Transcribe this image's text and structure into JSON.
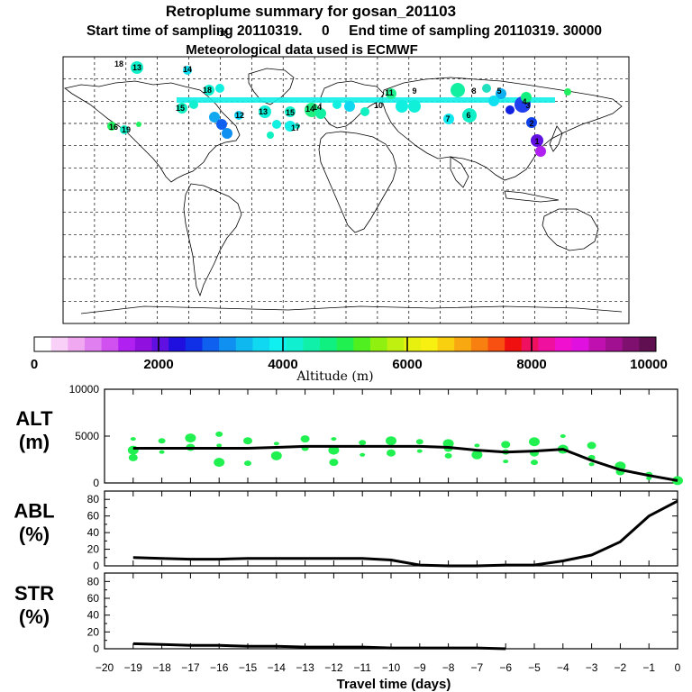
{
  "header": {
    "title": "Retroplume summary for gosan_201103",
    "sampling_line": "Start time of sampling 20110319.     0     End time of sampling 20110319. 30000",
    "met_line": "Meteorological data used is ECMWF"
  },
  "colorbar": {
    "ticks": [
      "0",
      "2000",
      "4000",
      "6000",
      "8000",
      "10000"
    ],
    "label": "Altitude  (m)",
    "colors": [
      "#ffffff",
      "#f8d0f8",
      "#f0a8f0",
      "#e080f0",
      "#d050f0",
      "#b020f0",
      "#9010e0",
      "#6010e0",
      "#2010e0",
      "#1030e8",
      "#1060f0",
      "#1090f0",
      "#10b8f0",
      "#10d8f0",
      "#10f0f0",
      "#10f0d0",
      "#10f0a8",
      "#10f080",
      "#20f050",
      "#50f020",
      "#90f010",
      "#c0f010",
      "#e8f010",
      "#f8f010",
      "#f8d010",
      "#f8a810",
      "#f88010",
      "#f85010",
      "#f01010",
      "#f01060",
      "#f010a0",
      "#f010d0",
      "#e010e0",
      "#c010b0",
      "#a01090",
      "#801070",
      "#601050"
    ]
  },
  "map_labels": [
    "13",
    "14",
    "18",
    "15",
    "18",
    "12",
    "13",
    "15",
    "17",
    "14",
    "14",
    "3",
    "10",
    "11",
    "7",
    "8",
    "9",
    "6",
    "5",
    "4",
    "2",
    "1",
    "16",
    "19",
    "18"
  ],
  "chart_data": [
    {
      "type": "scatter",
      "name": "ALT",
      "ylabel": "ALT\n(m)",
      "ylabel_lines": [
        "ALT",
        "(m)"
      ],
      "xlim": [
        -20,
        0
      ],
      "ylim": [
        0,
        10000
      ],
      "yticks": [
        "0",
        "5000",
        "10000"
      ],
      "line": {
        "x": [
          -19,
          -18,
          -17,
          -16,
          -15,
          -14,
          -13,
          -12,
          -11,
          -10,
          -9,
          -8,
          -7,
          -6,
          -5,
          -4,
          -3,
          -2,
          -1,
          0
        ],
        "y": [
          3700,
          3700,
          3700,
          3700,
          3700,
          3800,
          3900,
          3900,
          3900,
          3900,
          3900,
          3800,
          3500,
          3300,
          3400,
          3600,
          2400,
          1400,
          800,
          250
        ]
      },
      "points": [
        {
          "x": -19,
          "y": 4700
        },
        {
          "x": -19,
          "y": 3500
        },
        {
          "x": -19,
          "y": 2700
        },
        {
          "x": -18,
          "y": 4500
        },
        {
          "x": -18,
          "y": 3300
        },
        {
          "x": -17,
          "y": 4800
        },
        {
          "x": -17,
          "y": 3800
        },
        {
          "x": -16,
          "y": 5200
        },
        {
          "x": -16,
          "y": 4000
        },
        {
          "x": -16,
          "y": 2200
        },
        {
          "x": -15,
          "y": 4500
        },
        {
          "x": -15,
          "y": 2100
        },
        {
          "x": -14,
          "y": 4200
        },
        {
          "x": -14,
          "y": 2900
        },
        {
          "x": -13,
          "y": 4700
        },
        {
          "x": -13,
          "y": 3700
        },
        {
          "x": -12,
          "y": 4700
        },
        {
          "x": -12,
          "y": 3500
        },
        {
          "x": -12,
          "y": 2200
        },
        {
          "x": -11,
          "y": 4300
        },
        {
          "x": -11,
          "y": 3000
        },
        {
          "x": -10,
          "y": 4500
        },
        {
          "x": -10,
          "y": 3200
        },
        {
          "x": -9,
          "y": 4400
        },
        {
          "x": -9,
          "y": 3400
        },
        {
          "x": -8,
          "y": 4200
        },
        {
          "x": -8,
          "y": 3700
        },
        {
          "x": -8,
          "y": 2900
        },
        {
          "x": -7,
          "y": 4000
        },
        {
          "x": -7,
          "y": 3000
        },
        {
          "x": -6,
          "y": 4100
        },
        {
          "x": -6,
          "y": 3300
        },
        {
          "x": -6,
          "y": 2300
        },
        {
          "x": -5,
          "y": 4400
        },
        {
          "x": -5,
          "y": 3200
        },
        {
          "x": -5,
          "y": 2200
        },
        {
          "x": -4,
          "y": 5000
        },
        {
          "x": -4,
          "y": 3600
        },
        {
          "x": -3,
          "y": 4000
        },
        {
          "x": -3,
          "y": 2700
        },
        {
          "x": -3,
          "y": 2000
        },
        {
          "x": -2,
          "y": 1800
        },
        {
          "x": -2,
          "y": 1200
        },
        {
          "x": -1,
          "y": 900
        },
        {
          "x": -1,
          "y": 500
        },
        {
          "x": 0,
          "y": 250
        }
      ]
    },
    {
      "type": "line",
      "name": "ABL",
      "ylabel_lines": [
        "ABL",
        "(%)"
      ],
      "xlim": [
        -20,
        0
      ],
      "ylim": [
        0,
        90
      ],
      "yticks": [
        "0",
        "20",
        "40",
        "60",
        "80"
      ],
      "x": [
        -19,
        -18,
        -17,
        -16,
        -15,
        -14,
        -13,
        -12,
        -11,
        -10,
        -9,
        -8,
        -7,
        -6,
        -5,
        -4,
        -3,
        -2,
        -1,
        0
      ],
      "y": [
        10,
        9,
        8,
        8,
        9,
        9,
        9,
        9,
        9,
        7,
        1,
        0,
        0,
        1,
        1,
        6,
        13,
        29,
        60,
        78
      ]
    },
    {
      "type": "line",
      "name": "STR",
      "ylabel_lines": [
        "STR",
        "(%)"
      ],
      "xlim": [
        -20,
        0
      ],
      "ylim": [
        0,
        90
      ],
      "yticks": [
        "0",
        "20",
        "40",
        "60",
        "80"
      ],
      "xticks": [
        "−20",
        "−19",
        "−18",
        "−17",
        "−16",
        "−15",
        "−14",
        "−13",
        "−12",
        "−11",
        "−10",
        "−9",
        "−8",
        "−7",
        "−6",
        "−5",
        "−4",
        "−3",
        "−2",
        "−1",
        "0"
      ],
      "xlabel": "Travel time (days)",
      "x": [
        -19,
        -18,
        -17,
        -16,
        -15,
        -14,
        -13,
        -12,
        -11,
        -10,
        -9,
        -8,
        -7,
        -6
      ],
      "y": [
        6,
        5,
        4,
        4,
        3,
        3,
        2,
        2,
        2,
        1,
        1,
        1,
        1,
        0
      ]
    }
  ]
}
